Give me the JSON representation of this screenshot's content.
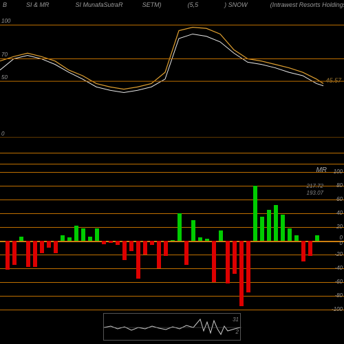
{
  "header": {
    "items": [
      "B",
      "SI & MR",
      "SI MunafaSutraR",
      "SETM)",
      "(5,5",
      ") SNOW",
      "(Intrawest Resorts Holdings Inc) Manuf"
    ]
  },
  "upper_chart": {
    "type": "line",
    "grid_lines": [
      0,
      50,
      70,
      100
    ],
    "grid_labels_left": [
      "0",
      "50",
      "70",
      "100"
    ],
    "grid_color": "#c07000",
    "background": "#000000",
    "line1_color": "#e0a030",
    "line2_color": "#e8e8e8",
    "current_value": "45.57",
    "current_value_color": "#a07830",
    "line1_points": [
      [
        0,
        68
      ],
      [
        20,
        72
      ],
      [
        40,
        75
      ],
      [
        60,
        72
      ],
      [
        80,
        68
      ],
      [
        100,
        60
      ],
      [
        120,
        55
      ],
      [
        140,
        48
      ],
      [
        160,
        45
      ],
      [
        180,
        43
      ],
      [
        200,
        45
      ],
      [
        220,
        48
      ],
      [
        240,
        58
      ],
      [
        260,
        95
      ],
      [
        280,
        98
      ],
      [
        300,
        97
      ],
      [
        320,
        92
      ],
      [
        340,
        78
      ],
      [
        360,
        70
      ],
      [
        380,
        68
      ],
      [
        400,
        65
      ],
      [
        420,
        62
      ],
      [
        440,
        58
      ],
      [
        460,
        52
      ],
      [
        470,
        48
      ]
    ],
    "line2_points": [
      [
        0,
        60
      ],
      [
        20,
        70
      ],
      [
        40,
        73
      ],
      [
        60,
        70
      ],
      [
        80,
        65
      ],
      [
        100,
        58
      ],
      [
        120,
        52
      ],
      [
        140,
        45
      ],
      [
        160,
        42
      ],
      [
        180,
        40
      ],
      [
        200,
        42
      ],
      [
        220,
        45
      ],
      [
        240,
        52
      ],
      [
        260,
        88
      ],
      [
        280,
        92
      ],
      [
        300,
        90
      ],
      [
        320,
        85
      ],
      [
        340,
        75
      ],
      [
        360,
        67
      ],
      [
        380,
        65
      ],
      [
        400,
        62
      ],
      [
        420,
        58
      ],
      [
        440,
        55
      ],
      [
        460,
        48
      ],
      [
        470,
        46
      ]
    ],
    "ylim": [
      0,
      110
    ]
  },
  "mid_chart": {
    "grid_color": "#c07000"
  },
  "lower_chart": {
    "type": "bar",
    "label": "MR",
    "grid_lines": [
      -100,
      -80,
      -60,
      -40,
      -20,
      0,
      20,
      40,
      60,
      80,
      100
    ],
    "grid_labels_right": [
      "-100",
      "-80",
      "-60",
      "-40",
      "-20",
      "0",
      "0",
      "20",
      "40",
      "60",
      "80",
      "100"
    ],
    "grid_color": "#c07000",
    "zero_line_color": "#d08010",
    "green_color": "#00cc00",
    "red_color": "#dd0000",
    "value_labels": [
      "217.72",
      "193.07"
    ],
    "bars": [
      {
        "x": 8,
        "v": -42
      },
      {
        "x": 18,
        "v": -35
      },
      {
        "x": 28,
        "v": 6
      },
      {
        "x": 38,
        "v": -38
      },
      {
        "x": 48,
        "v": -38
      },
      {
        "x": 58,
        "v": -18
      },
      {
        "x": 68,
        "v": -10
      },
      {
        "x": 78,
        "v": -18
      },
      {
        "x": 88,
        "v": 8
      },
      {
        "x": 98,
        "v": 5
      },
      {
        "x": 108,
        "v": 22
      },
      {
        "x": 118,
        "v": 18
      },
      {
        "x": 128,
        "v": 6
      },
      {
        "x": 138,
        "v": 18
      },
      {
        "x": 148,
        "v": -5
      },
      {
        "x": 158,
        "v": -3
      },
      {
        "x": 168,
        "v": -6
      },
      {
        "x": 178,
        "v": -28
      },
      {
        "x": 188,
        "v": -15
      },
      {
        "x": 198,
        "v": -55
      },
      {
        "x": 208,
        "v": -20
      },
      {
        "x": 218,
        "v": -6
      },
      {
        "x": 228,
        "v": -40
      },
      {
        "x": 238,
        "v": -22
      },
      {
        "x": 248,
        "v": 1
      },
      {
        "x": 258,
        "v": 40
      },
      {
        "x": 268,
        "v": -35
      },
      {
        "x": 278,
        "v": 30
      },
      {
        "x": 288,
        "v": 5
      },
      {
        "x": 298,
        "v": 3
      },
      {
        "x": 308,
        "v": -60
      },
      {
        "x": 318,
        "v": 15
      },
      {
        "x": 328,
        "v": -62
      },
      {
        "x": 338,
        "v": -48
      },
      {
        "x": 348,
        "v": -95
      },
      {
        "x": 358,
        "v": -75
      },
      {
        "x": 368,
        "v": 80
      },
      {
        "x": 378,
        "v": 35
      },
      {
        "x": 388,
        "v": 45
      },
      {
        "x": 398,
        "v": 52
      },
      {
        "x": 408,
        "v": 38
      },
      {
        "x": 418,
        "v": 18
      },
      {
        "x": 428,
        "v": 8
      },
      {
        "x": 438,
        "v": -30
      },
      {
        "x": 448,
        "v": -22
      },
      {
        "x": 458,
        "v": 8
      }
    ],
    "ylim": [
      -100,
      100
    ]
  },
  "bottom_chart": {
    "type": "line",
    "line_color": "#cccccc",
    "labels": [
      "31",
      "2"
    ],
    "points": [
      [
        0,
        20
      ],
      [
        10,
        18
      ],
      [
        20,
        22
      ],
      [
        30,
        19
      ],
      [
        40,
        24
      ],
      [
        50,
        20
      ],
      [
        60,
        22
      ],
      [
        70,
        18
      ],
      [
        80,
        21
      ],
      [
        90,
        23
      ],
      [
        100,
        19
      ],
      [
        110,
        22
      ],
      [
        120,
        17
      ],
      [
        130,
        20
      ],
      [
        140,
        8
      ],
      [
        145,
        25
      ],
      [
        150,
        12
      ],
      [
        155,
        28
      ],
      [
        160,
        10
      ],
      [
        165,
        22
      ],
      [
        170,
        30
      ],
      [
        175,
        18
      ],
      [
        180,
        25
      ],
      [
        190,
        22
      ],
      [
        198,
        20
      ]
    ]
  }
}
